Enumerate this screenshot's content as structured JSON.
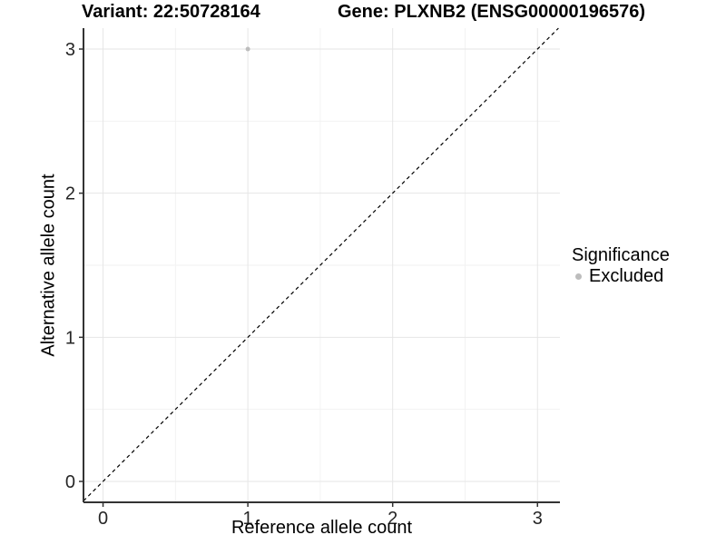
{
  "chart_data": {
    "type": "scatter",
    "title_left": "Variant: 22:50728164",
    "title_right": "Gene: PLXNB2 (ENSG00000196576)",
    "xlabel": "Reference allele count",
    "ylabel": "Alternative allele count",
    "xlim": [
      -0.135,
      3.155
    ],
    "ylim": [
      -0.145,
      3.145
    ],
    "x_ticks": [
      0,
      1,
      2,
      3
    ],
    "y_ticks": [
      0,
      1,
      2,
      3
    ],
    "x_minor_ticks": [
      0.5,
      1.5,
      2.5
    ],
    "y_minor_ticks": [
      0.5,
      1.5,
      2.5
    ],
    "grid": "major+minor",
    "points": [
      {
        "x": 1,
        "y": 3,
        "significance": "Excluded"
      }
    ],
    "reference_line": {
      "type": "identity",
      "style": "dashed",
      "color": "#000000"
    },
    "legend": {
      "title": "Significance",
      "position": "right",
      "entries": [
        {
          "label": "Excluded",
          "color": "#bdbdbd"
        }
      ]
    },
    "colors": {
      "point": "#bdbdbd",
      "grid_major": "#e6e6e6",
      "grid_minor": "#f2f2f2",
      "axis_line": "#333333",
      "tick_text": "#262626",
      "title_text": "#000000",
      "background": "#ffffff"
    }
  }
}
